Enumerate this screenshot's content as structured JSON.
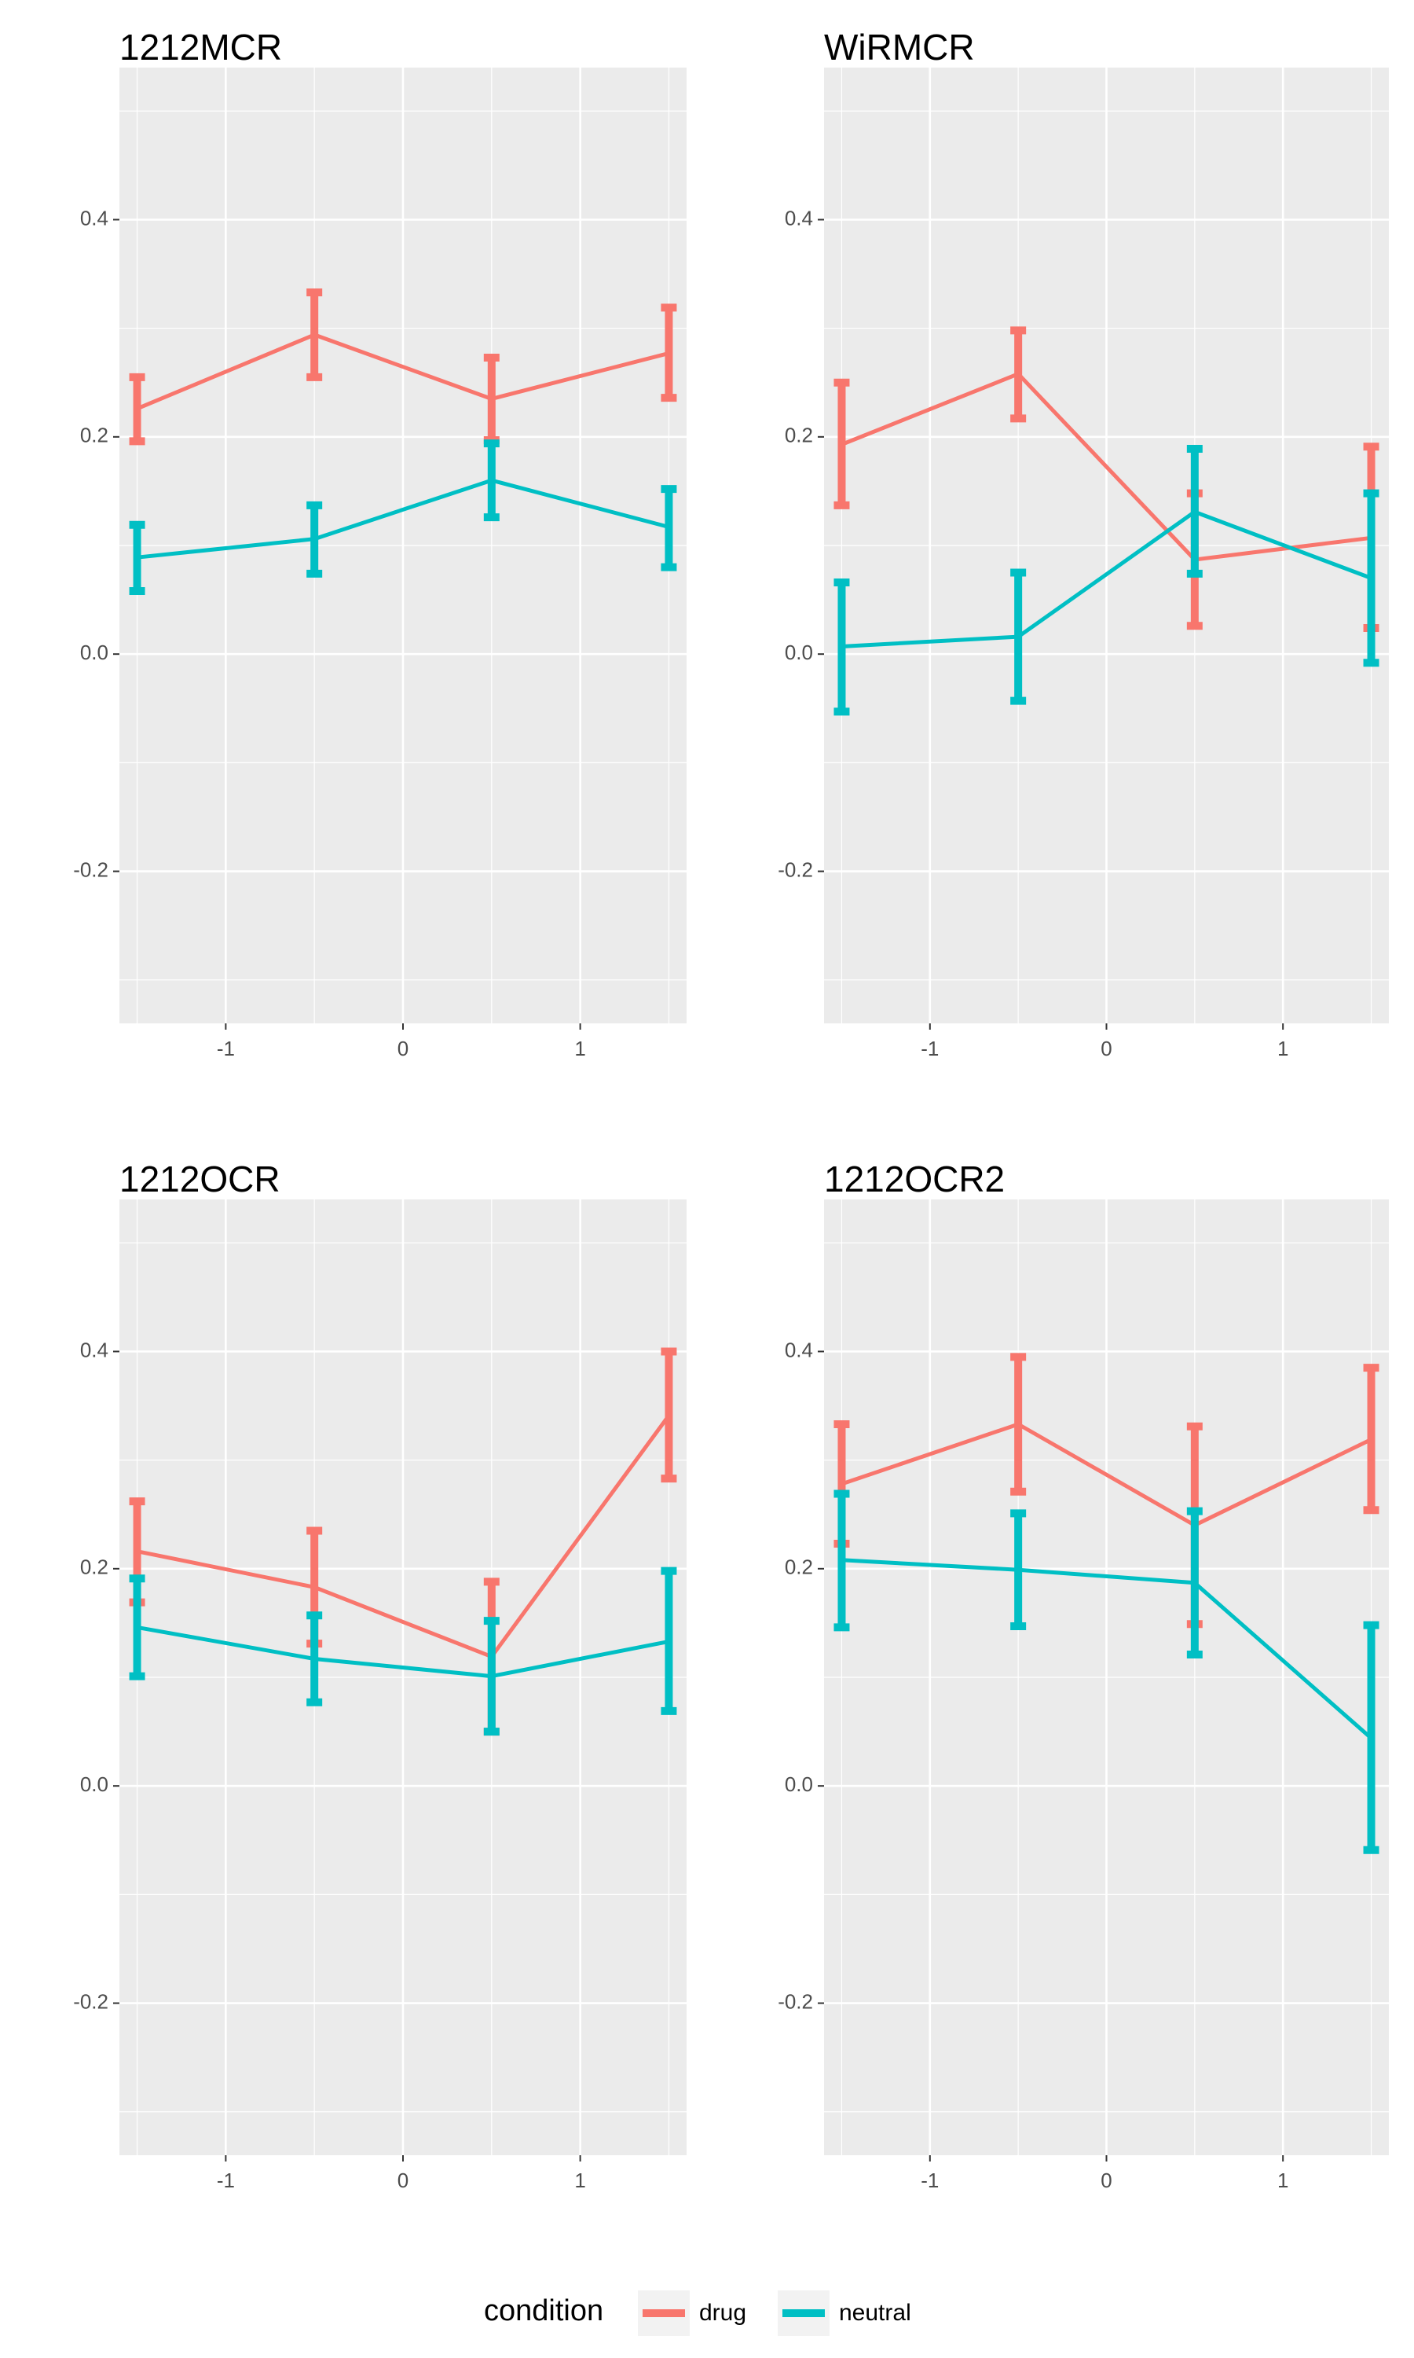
{
  "legend": {
    "title": "condition",
    "position": "bottom",
    "entries": [
      {
        "name": "drug",
        "color": "#f8766d"
      },
      {
        "name": "neutral",
        "color": "#00bfc4"
      }
    ]
  },
  "chart_data": [
    {
      "type": "line",
      "title": "1212MCR",
      "xlabel": "",
      "ylabel": "",
      "xlim": [
        -1.6,
        1.6
      ],
      "ylim": [
        -0.34,
        0.54
      ],
      "xticks": [
        -1,
        0,
        1
      ],
      "yticks": [
        -0.2,
        0.0,
        0.2,
        0.4
      ],
      "grid": true,
      "x": [
        -1.5,
        -0.5,
        0.5,
        1.5
      ],
      "series": [
        {
          "name": "drug",
          "color": "#f8766d",
          "values": [
            0.226,
            0.294,
            0.235,
            0.277
          ],
          "lower": [
            0.196,
            0.255,
            0.197,
            0.236
          ],
          "upper": [
            0.255,
            0.333,
            0.273,
            0.319
          ]
        },
        {
          "name": "neutral",
          "color": "#00bfc4",
          "values": [
            0.089,
            0.106,
            0.16,
            0.117
          ],
          "lower": [
            0.058,
            0.074,
            0.126,
            0.08
          ],
          "upper": [
            0.119,
            0.137,
            0.194,
            0.152
          ]
        }
      ]
    },
    {
      "type": "line",
      "title": "WiRMCR",
      "xlabel": "",
      "ylabel": "",
      "xlim": [
        -1.6,
        1.6
      ],
      "ylim": [
        -0.34,
        0.54
      ],
      "xticks": [
        -1,
        0,
        1
      ],
      "yticks": [
        -0.2,
        0.0,
        0.2,
        0.4
      ],
      "grid": true,
      "x": [
        -1.5,
        -0.5,
        0.5,
        1.5
      ],
      "series": [
        {
          "name": "drug",
          "color": "#f8766d",
          "values": [
            0.193,
            0.258,
            0.087,
            0.107
          ],
          "lower": [
            0.137,
            0.217,
            0.026,
            0.024
          ],
          "upper": [
            0.25,
            0.298,
            0.148,
            0.191
          ]
        },
        {
          "name": "neutral",
          "color": "#00bfc4",
          "values": [
            0.007,
            0.016,
            0.131,
            0.07
          ],
          "lower": [
            -0.053,
            -0.043,
            0.074,
            -0.008
          ],
          "upper": [
            0.066,
            0.075,
            0.189,
            0.148
          ]
        }
      ]
    },
    {
      "type": "line",
      "title": "1212OCR",
      "xlabel": "",
      "ylabel": "",
      "xlim": [
        -1.6,
        1.6
      ],
      "ylim": [
        -0.34,
        0.54
      ],
      "xticks": [
        -1,
        0,
        1
      ],
      "yticks": [
        -0.2,
        0.0,
        0.2,
        0.4
      ],
      "grid": true,
      "x": [
        -1.5,
        -0.5,
        0.5,
        1.5
      ],
      "series": [
        {
          "name": "drug",
          "color": "#f8766d",
          "values": [
            0.216,
            0.183,
            0.119,
            0.341
          ],
          "lower": [
            0.169,
            0.131,
            0.05,
            0.283
          ],
          "upper": [
            0.262,
            0.235,
            0.188,
            0.4
          ]
        },
        {
          "name": "neutral",
          "color": "#00bfc4",
          "values": [
            0.146,
            0.117,
            0.101,
            0.133
          ],
          "lower": [
            0.101,
            0.077,
            0.05,
            0.069
          ],
          "upper": [
            0.191,
            0.157,
            0.152,
            0.198
          ]
        }
      ]
    },
    {
      "type": "line",
      "title": "1212OCR2",
      "xlabel": "",
      "ylabel": "",
      "xlim": [
        -1.6,
        1.6
      ],
      "ylim": [
        -0.34,
        0.54
      ],
      "xticks": [
        -1,
        0,
        1
      ],
      "yticks": [
        -0.2,
        0.0,
        0.2,
        0.4
      ],
      "grid": true,
      "x": [
        -1.5,
        -0.5,
        0.5,
        1.5
      ],
      "series": [
        {
          "name": "drug",
          "color": "#f8766d",
          "values": [
            0.278,
            0.333,
            0.24,
            0.319
          ],
          "lower": [
            0.223,
            0.271,
            0.149,
            0.254
          ],
          "upper": [
            0.333,
            0.395,
            0.331,
            0.385
          ]
        },
        {
          "name": "neutral",
          "color": "#00bfc4",
          "values": [
            0.208,
            0.199,
            0.187,
            0.044
          ],
          "lower": [
            0.146,
            0.147,
            0.121,
            -0.059
          ],
          "upper": [
            0.269,
            0.251,
            0.253,
            0.148
          ]
        }
      ]
    }
  ]
}
